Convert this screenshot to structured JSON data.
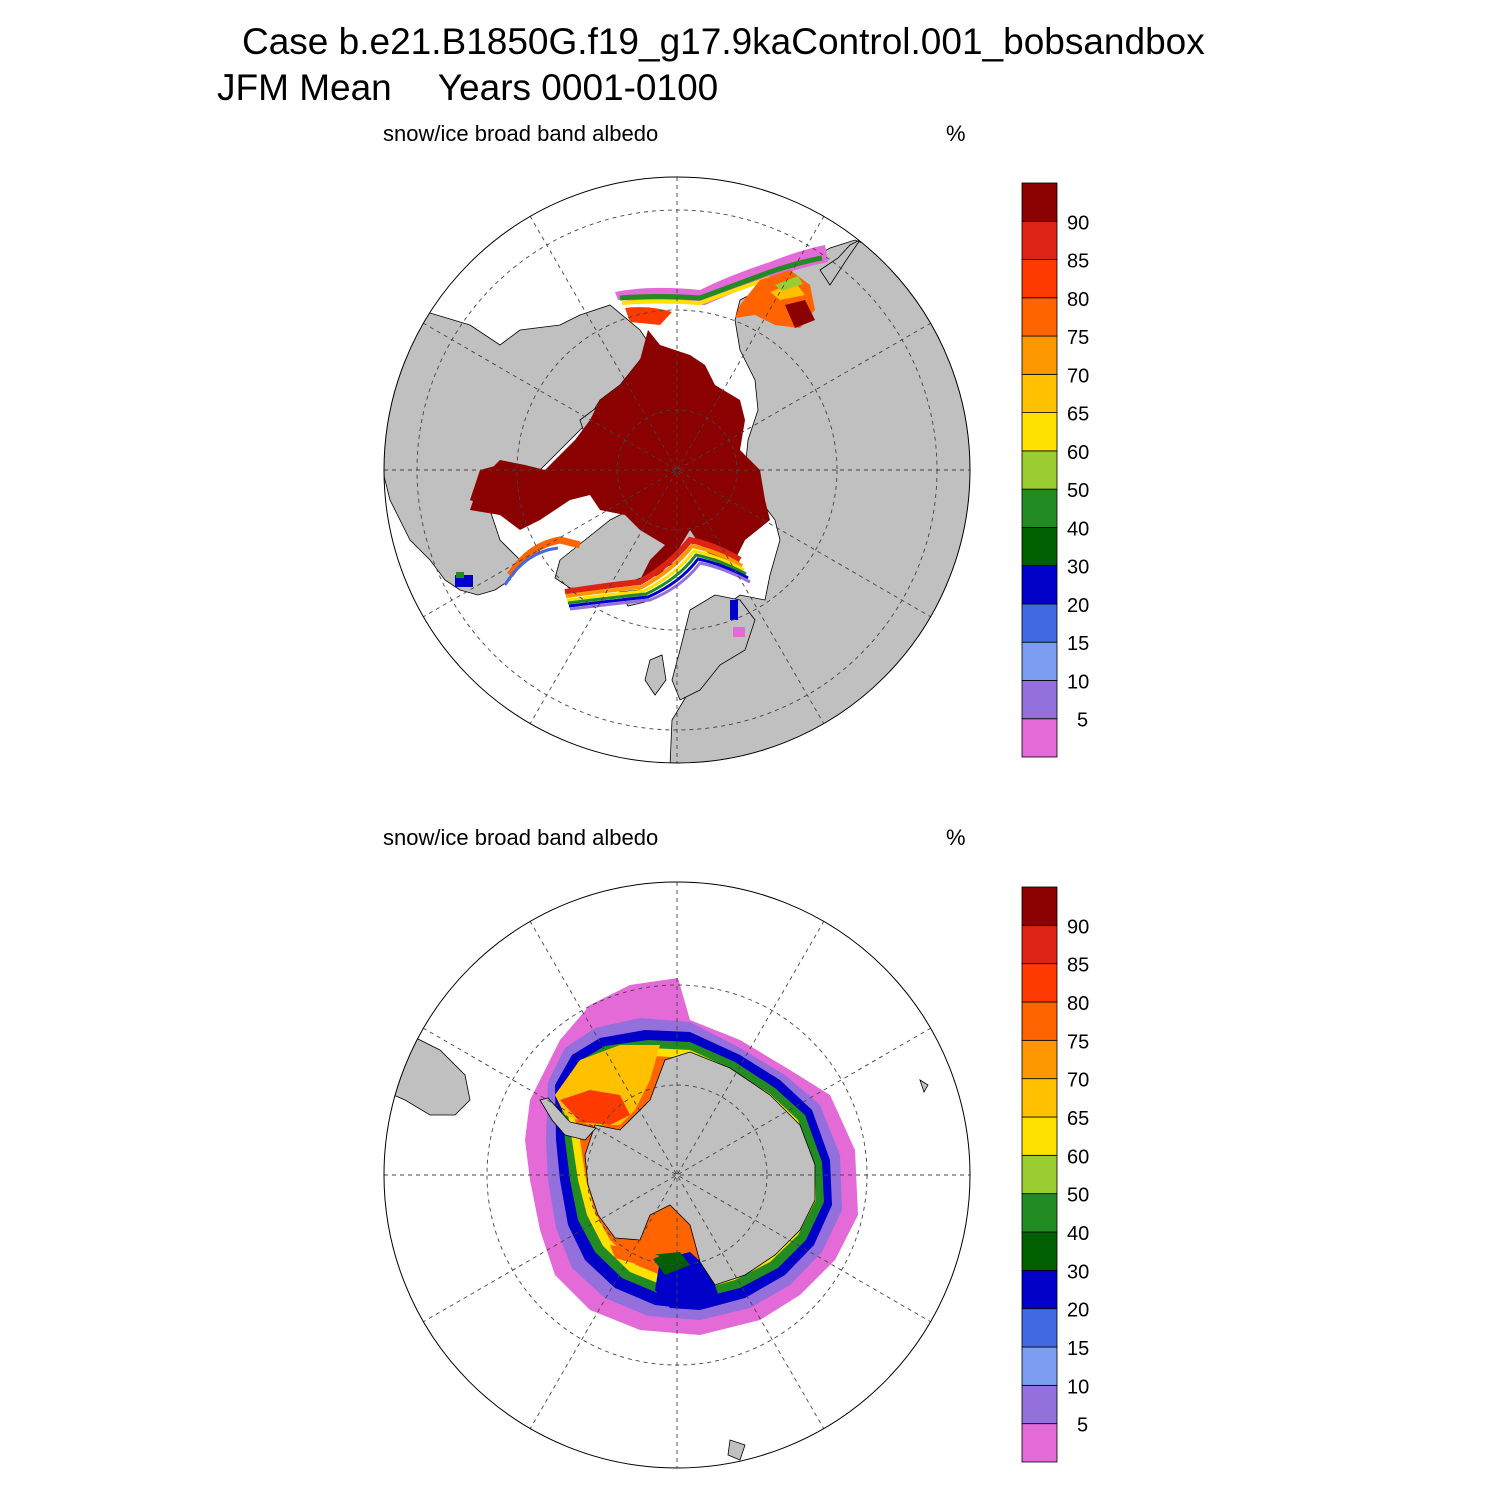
{
  "title": {
    "line1": "Case b.e21.B1850G.f19_g17.9kaControl.001_bobsandbox",
    "season": "JFM Mean",
    "years": "Years 0001-0100"
  },
  "panels": [
    {
      "id": "north",
      "variable": "snow/ice broad band albedo",
      "units": "%"
    },
    {
      "id": "south",
      "variable": "snow/ice broad band albedo",
      "units": "%"
    }
  ],
  "colorbar": {
    "colors": [
      "#E36AD7",
      "#9370DB",
      "#7B9EF2",
      "#4169E1",
      "#0000C8",
      "#005F00",
      "#228B22",
      "#9ACD32",
      "#FFE100",
      "#FFC000",
      "#FF9700",
      "#FF6400",
      "#FF3A00",
      "#DC2314",
      "#8B0000"
    ],
    "labels": [
      "5",
      "10",
      "15",
      "20",
      "30",
      "40",
      "50",
      "60",
      "65",
      "70",
      "75",
      "80",
      "85",
      "90"
    ]
  },
  "colors": {
    "land": "#C0C0C0",
    "ocean": "#FFFFFF",
    "outline": "#000000"
  }
}
